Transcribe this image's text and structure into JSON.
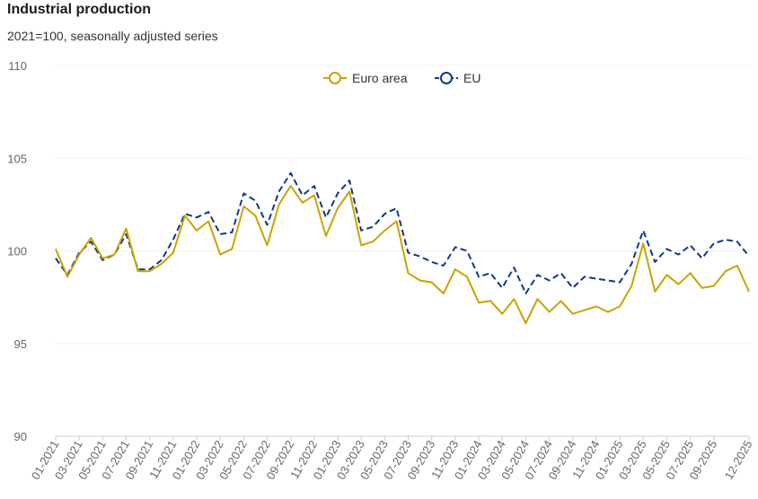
{
  "header": {
    "title": "Industrial production",
    "subtitle": "2021=100, seasonally adjusted series"
  },
  "chart_data": {
    "type": "line",
    "title": "Industrial production",
    "subtitle": "2021=100, seasonally adjusted series",
    "xlabel": "",
    "ylabel": "",
    "ylim": [
      90,
      110
    ],
    "yticks": [
      "90",
      "95",
      "100",
      "105",
      "110"
    ],
    "grid": true,
    "legend_placement": "top-center",
    "x_tick_labels": [
      "01-2021",
      "03-2021",
      "05-2021",
      "07-2021",
      "09-2021",
      "11-2021",
      "01-2022",
      "03-2022",
      "05-2022",
      "07-2022",
      "09-2022",
      "11-2022",
      "01-2023",
      "03-2023",
      "05-2023",
      "07-2023",
      "09-2023",
      "11-2023",
      "01-2024",
      "03-2024",
      "05-2024",
      "07-2024",
      "09-2024",
      "11-2024",
      "01-2025",
      "03-2025",
      "05-2025",
      "07-2025",
      "09-2025",
      "12-2025"
    ],
    "months": [
      "01-2021",
      "02-2021",
      "03-2021",
      "04-2021",
      "05-2021",
      "06-2021",
      "07-2021",
      "08-2021",
      "09-2021",
      "10-2021",
      "11-2021",
      "12-2021",
      "01-2022",
      "02-2022",
      "03-2022",
      "04-2022",
      "05-2022",
      "06-2022",
      "07-2022",
      "08-2022",
      "09-2022",
      "10-2022",
      "11-2022",
      "12-2022",
      "01-2023",
      "02-2023",
      "03-2023",
      "04-2023",
      "05-2023",
      "06-2023",
      "07-2023",
      "08-2023",
      "09-2023",
      "10-2023",
      "11-2023",
      "12-2023",
      "01-2024",
      "02-2024",
      "03-2024",
      "04-2024",
      "05-2024",
      "06-2024",
      "07-2024",
      "08-2024",
      "09-2024",
      "10-2024",
      "11-2024",
      "12-2024",
      "01-2025",
      "02-2025",
      "03-2025",
      "04-2025",
      "05-2025",
      "06-2025",
      "07-2025",
      "08-2025",
      "09-2025",
      "10-2025",
      "11-2025",
      "12-2025"
    ],
    "series": [
      {
        "name": "Euro area",
        "color": "#c8a400",
        "dash": "solid",
        "values": [
          100.1,
          98.6,
          99.8,
          100.7,
          99.6,
          99.8,
          101.2,
          98.9,
          98.9,
          99.3,
          99.9,
          101.9,
          101.1,
          101.6,
          99.8,
          100.1,
          102.4,
          101.9,
          100.3,
          102.5,
          103.5,
          102.6,
          103.0,
          100.8,
          102.3,
          103.2,
          100.3,
          100.5,
          101.1,
          101.6,
          98.8,
          98.4,
          98.3,
          97.7,
          99.0,
          98.6,
          97.2,
          97.3,
          96.6,
          97.4,
          96.1,
          97.4,
          96.7,
          97.3,
          96.6,
          96.8,
          97.0,
          96.7,
          97.0,
          98.1,
          100.4,
          97.8,
          98.7,
          98.2,
          98.8,
          98.0,
          98.1,
          98.9,
          99.2,
          97.8
        ]
      },
      {
        "name": "EU",
        "color": "#0e3888",
        "dash": "dashed",
        "values": [
          99.6,
          98.7,
          99.9,
          100.5,
          99.5,
          99.8,
          100.9,
          99.0,
          99.0,
          99.5,
          100.6,
          102.0,
          101.8,
          102.1,
          100.9,
          101.0,
          103.1,
          102.7,
          101.4,
          103.2,
          104.2,
          103.0,
          103.5,
          101.8,
          103.1,
          103.8,
          101.1,
          101.3,
          102.0,
          102.3,
          99.9,
          99.7,
          99.4,
          99.2,
          100.2,
          100.0,
          98.6,
          98.8,
          98.0,
          99.1,
          97.7,
          98.7,
          98.4,
          98.8,
          98.0,
          98.6,
          98.5,
          98.4,
          98.3,
          99.3,
          101.1,
          99.4,
          100.1,
          99.8,
          100.3,
          99.6,
          100.4,
          100.6,
          100.5,
          99.7
        ]
      }
    ]
  }
}
